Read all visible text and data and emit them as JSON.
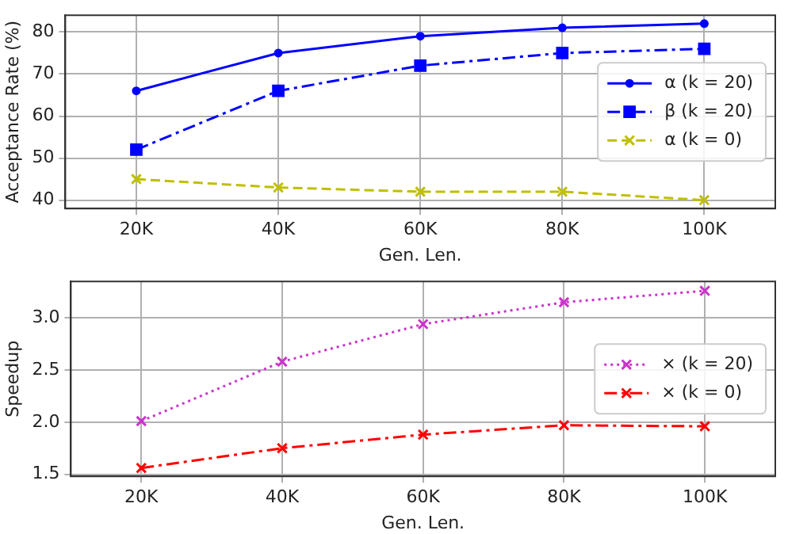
{
  "chart_data": [
    {
      "type": "line",
      "xlabel": "Gen. Len.",
      "ylabel": "Acceptance Rate (%)",
      "categories": [
        "20K",
        "40K",
        "60K",
        "80K",
        "100K"
      ],
      "ylim": [
        38,
        84
      ],
      "yticks": [
        40,
        50,
        60,
        70,
        80
      ],
      "grid": true,
      "legend": "right",
      "series": [
        {
          "name": "α (k = 20)",
          "color": "#0000ff",
          "marker": "circle",
          "line_style": "solid",
          "values": [
            66,
            75,
            79,
            81,
            82
          ]
        },
        {
          "name": "β (k = 20)",
          "color": "#0000ff",
          "marker": "square",
          "line_style": "dashdot",
          "values": [
            52,
            66,
            72,
            75,
            76
          ]
        },
        {
          "name": "α (k = 0)",
          "color": "#bfbf00",
          "marker": "cross",
          "line_style": "dashed",
          "values": [
            45,
            43,
            42,
            42,
            40
          ]
        }
      ]
    },
    {
      "type": "line",
      "xlabel": "Gen. Len.",
      "ylabel": "Speedup",
      "categories": [
        "20K",
        "40K",
        "60K",
        "80K",
        "100K"
      ],
      "ylim": [
        1.48,
        3.35
      ],
      "yticks": [
        {
          "value": 1.5,
          "label": "1.5"
        },
        {
          "value": 2,
          "label": "2.0"
        },
        {
          "value": 2.5,
          "label": "2.5"
        },
        {
          "value": 3,
          "label": "3.0"
        }
      ],
      "grid": true,
      "legend": "right",
      "series": [
        {
          "name": "× (k = 20)",
          "color": "#cc33cc",
          "marker": "cross",
          "line_style": "dotted",
          "values": [
            2.01,
            2.58,
            2.94,
            3.15,
            3.26
          ]
        },
        {
          "name": "× (k = 0)",
          "color": "#ff0000",
          "marker": "cross",
          "line_style": "dashdot",
          "values": [
            1.56,
            1.75,
            1.88,
            1.97,
            1.96
          ]
        }
      ]
    }
  ]
}
